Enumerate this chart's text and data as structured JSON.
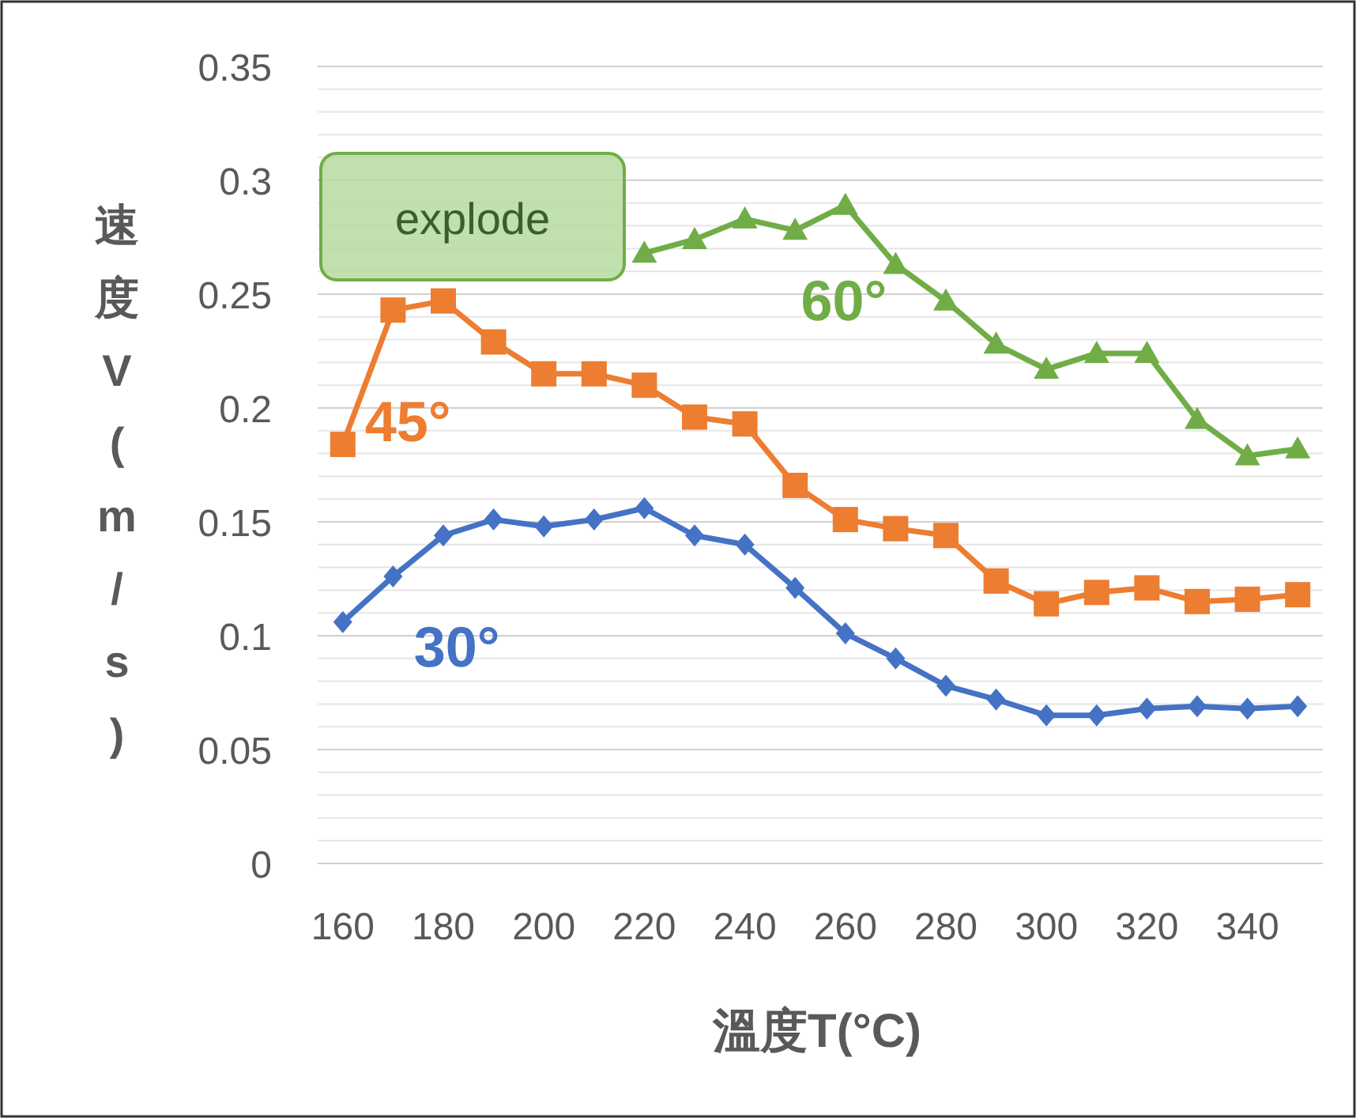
{
  "chart_data": {
    "type": "line",
    "x": [
      160,
      170,
      180,
      190,
      200,
      210,
      220,
      230,
      240,
      250,
      260,
      270,
      280,
      290,
      300,
      310,
      320,
      330,
      340,
      350
    ],
    "series": [
      {
        "name": "30°",
        "color": "#4472c4",
        "marker": "diamond",
        "values": [
          0.106,
          0.126,
          0.144,
          0.151,
          0.148,
          0.151,
          0.156,
          0.144,
          0.14,
          0.121,
          0.101,
          0.09,
          0.078,
          0.072,
          0.065,
          0.065,
          0.068,
          0.069,
          0.068,
          0.069
        ]
      },
      {
        "name": "45°",
        "color": "#ed7d31",
        "marker": "square",
        "values": [
          0.184,
          0.243,
          0.247,
          0.229,
          0.215,
          0.215,
          0.21,
          0.196,
          0.193,
          0.166,
          0.151,
          0.147,
          0.144,
          0.124,
          0.114,
          0.119,
          0.121,
          0.115,
          0.116,
          0.118
        ]
      },
      {
        "name": "60°",
        "color": "#70ad47",
        "marker": "triangle",
        "values": [
          null,
          null,
          null,
          null,
          null,
          null,
          0.268,
          0.274,
          0.283,
          0.278,
          0.289,
          0.263,
          0.247,
          0.228,
          0.217,
          0.224,
          0.224,
          0.195,
          0.179,
          0.182
        ]
      }
    ],
    "xlabel": "溫度T(°C)",
    "ylabel": "速度V(m/s)",
    "xlim": [
      155,
      355
    ],
    "xticks": [
      160,
      180,
      200,
      220,
      240,
      260,
      280,
      300,
      320,
      340
    ],
    "ylim": [
      0,
      0.35
    ],
    "yticks": [
      {
        "value": 0,
        "label": "0"
      },
      {
        "value": 0.01,
        "label": null
      },
      {
        "value": 0.02,
        "label": null
      },
      {
        "value": 0.03,
        "label": null
      },
      {
        "value": 0.04,
        "label": null
      },
      {
        "value": 0.05,
        "label": "0.05"
      },
      {
        "value": 0.06,
        "label": null
      },
      {
        "value": 0.07,
        "label": null
      },
      {
        "value": 0.08,
        "label": null
      },
      {
        "value": 0.09,
        "label": null
      },
      {
        "value": 0.1,
        "label": "0.1"
      },
      {
        "value": 0.11,
        "label": null
      },
      {
        "value": 0.12,
        "label": null
      },
      {
        "value": 0.13,
        "label": null
      },
      {
        "value": 0.14,
        "label": null
      },
      {
        "value": 0.15,
        "label": "0.15"
      },
      {
        "value": 0.16,
        "label": null
      },
      {
        "value": 0.17,
        "label": null
      },
      {
        "value": 0.18,
        "label": null
      },
      {
        "value": 0.19,
        "label": null
      },
      {
        "value": 0.2,
        "label": "0.2"
      },
      {
        "value": 0.21,
        "label": null
      },
      {
        "value": 0.22,
        "label": null
      },
      {
        "value": 0.23,
        "label": null
      },
      {
        "value": 0.24,
        "label": null
      },
      {
        "value": 0.25,
        "label": "0.25"
      },
      {
        "value": 0.26,
        "label": null
      },
      {
        "value": 0.27,
        "label": null
      },
      {
        "value": 0.28,
        "label": null
      },
      {
        "value": 0.29,
        "label": null
      },
      {
        "value": 0.3,
        "label": "0.3"
      },
      {
        "value": 0.31,
        "label": null
      },
      {
        "value": 0.32,
        "label": null
      },
      {
        "value": 0.33,
        "label": null
      },
      {
        "value": 0.34,
        "label": null
      },
      {
        "value": 0.35,
        "label": "0.35"
      }
    ],
    "grid": "y",
    "legend": false,
    "annotations": [
      "explode"
    ]
  }
}
